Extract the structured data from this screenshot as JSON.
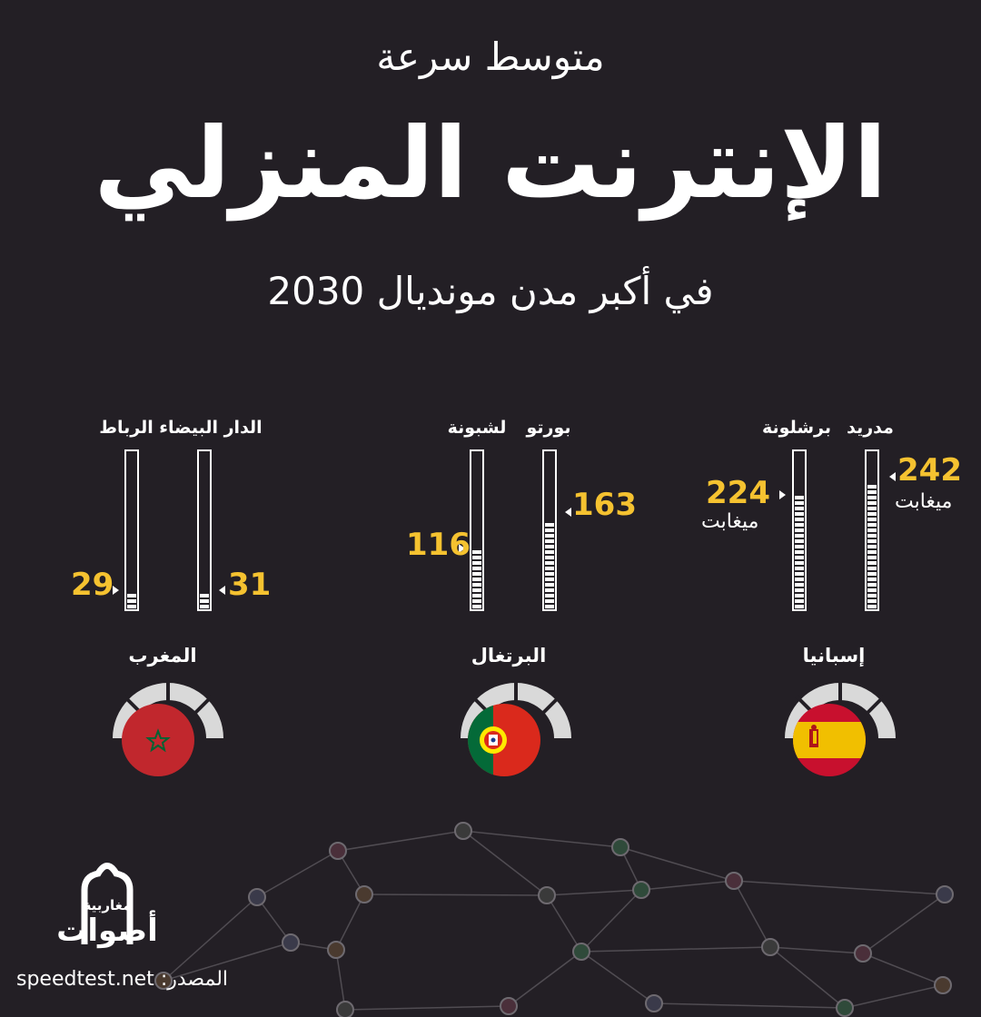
{
  "title": {
    "line1": "متوسط سرعة",
    "line2": "الإنترنت المنزلي",
    "line3": "في أكبر مدن مونديال 2030"
  },
  "chart_data": {
    "type": "bar",
    "orientation": "vertical",
    "unit": "ميغابت",
    "max_scale": 300,
    "countries": [
      {
        "name": "إسبانيا",
        "flag": "spain-flag",
        "cities": [
          {
            "name": "مدريد",
            "value": 242
          },
          {
            "name": "برشلونة",
            "value": 224
          }
        ]
      },
      {
        "name": "البرتغال",
        "flag": "portugal-flag",
        "cities": [
          {
            "name": "بورتو",
            "value": 163
          },
          {
            "name": "لشبونة",
            "value": 116
          }
        ]
      },
      {
        "name": "المغرب",
        "flag": "morocco-flag",
        "cities": [
          {
            "name": "الدار البيضاء",
            "value": 31
          },
          {
            "name": "الرباط",
            "value": 29
          }
        ]
      }
    ]
  },
  "colors": {
    "background": "#231f25",
    "value": "#f5c230",
    "gauge": "#d9d9d9"
  },
  "logo": {
    "small_text": "مغاربية",
    "big_text": "أصوات"
  },
  "source": {
    "label": "المصدر:",
    "value": "speedtest.net"
  }
}
